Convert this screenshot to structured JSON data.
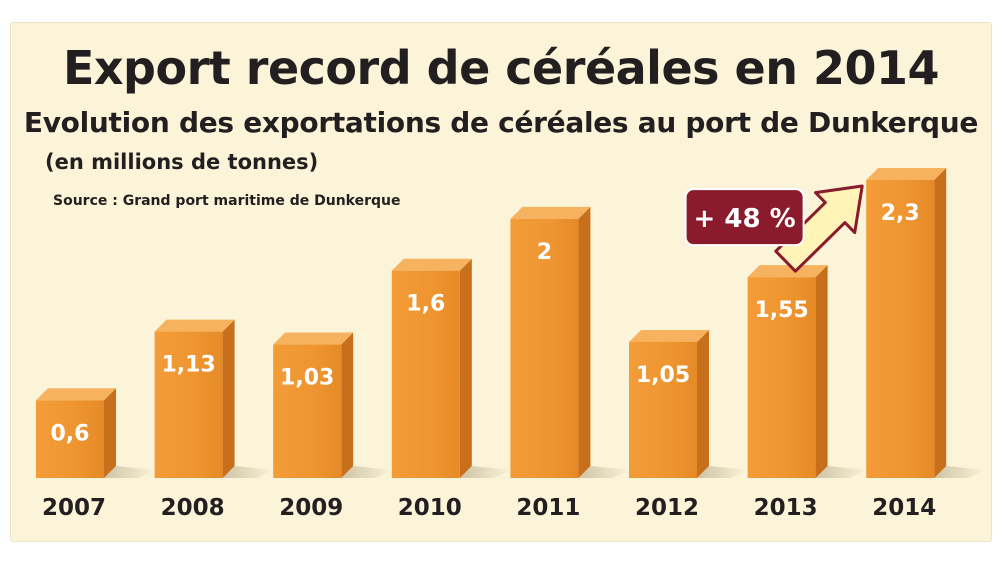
{
  "chart_data": {
    "type": "bar",
    "title": "Export record de céréales en 2014",
    "subtitle": "Evolution des exportations de céréales au port de Dunkerque",
    "unit_note": "(en millions de tonnes)",
    "source": "Source : Grand port maritime de Dunkerque",
    "categories": [
      "2007",
      "2008",
      "2009",
      "2010",
      "2011",
      "2012",
      "2013",
      "2014"
    ],
    "values": [
      0.6,
      1.13,
      1.03,
      1.6,
      2,
      1.05,
      1.55,
      2.3
    ],
    "value_labels": [
      "0,6",
      "1,13",
      "1,03",
      "1,6",
      "2",
      "1,05",
      "1,55",
      "2,3"
    ],
    "ylim": [
      0,
      2.3
    ],
    "grid": false,
    "annotation": {
      "text": "+ 48 %",
      "from": "2013",
      "to": "2014"
    },
    "colors": {
      "bar_front": "#ee9530",
      "bar_side": "#c86f1c",
      "bar_top": "#f6b25e",
      "badge": "#8a1b2c",
      "arrow": "#fff3b8",
      "background": "#fbf4d8"
    }
  }
}
